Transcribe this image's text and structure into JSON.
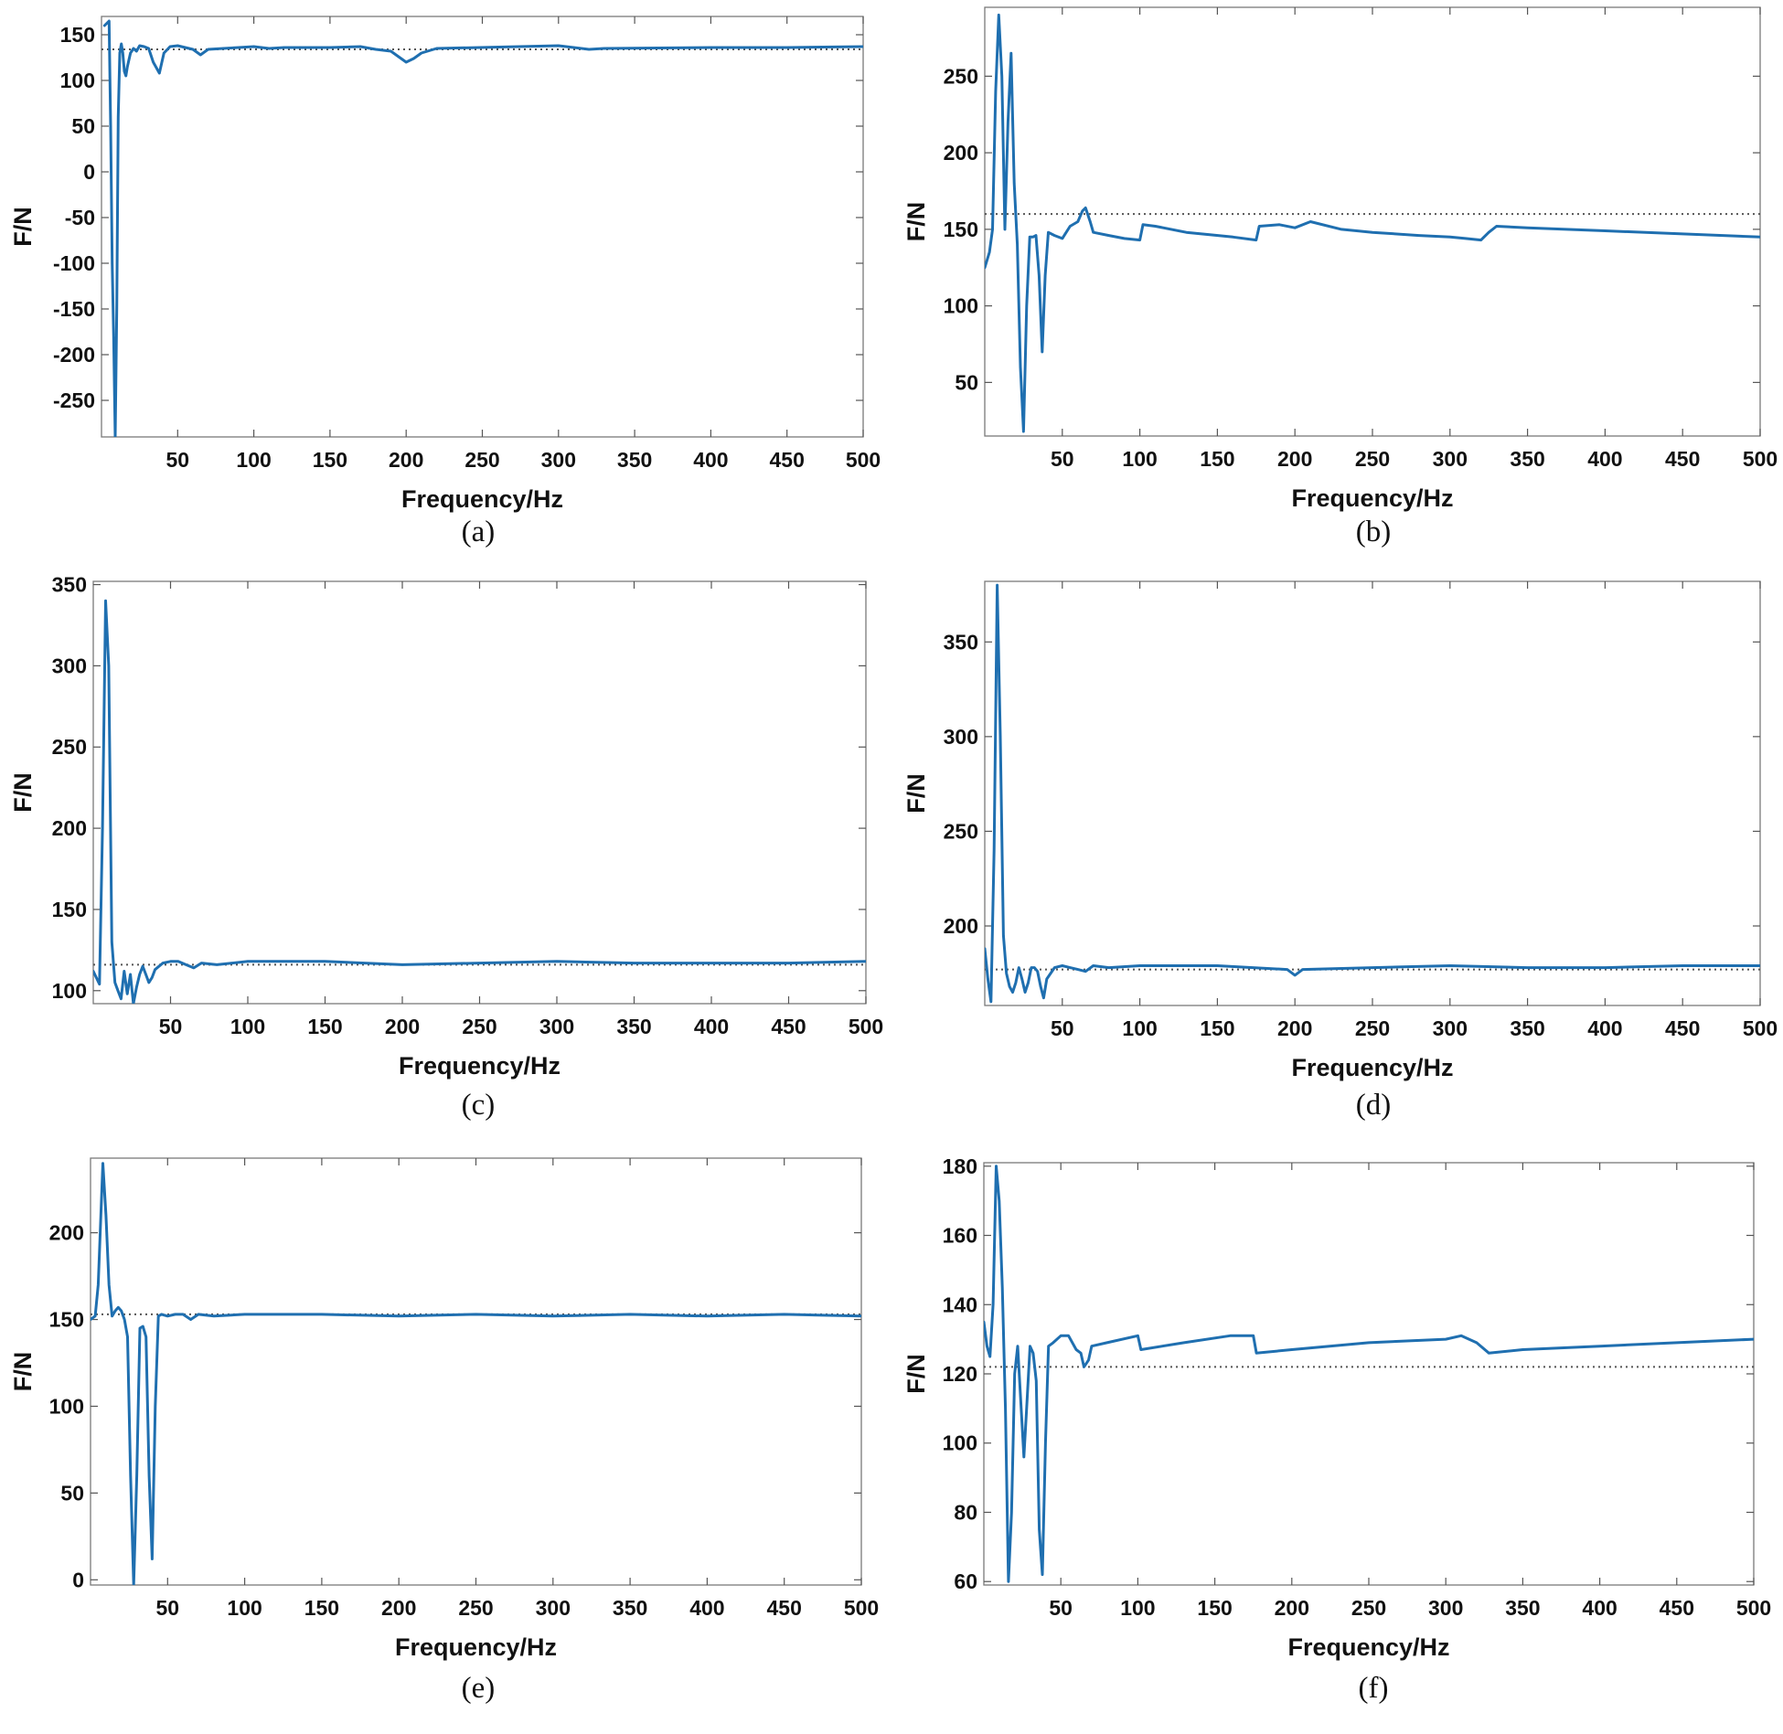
{
  "colors": {
    "series": "#1f6fb0",
    "reference": "#555555",
    "frame": "#7a7a7a",
    "text": "#111111"
  },
  "chart_data": [
    {
      "type": "line",
      "caption": "(a)",
      "xlabel": "Frequency/Hz",
      "ylabel": "F/N",
      "xlim": [
        0,
        500
      ],
      "ylim": [
        -290,
        170
      ],
      "xticks": [
        50,
        100,
        150,
        200,
        250,
        300,
        350,
        400,
        450,
        500
      ],
      "yticks": [
        150,
        100,
        50,
        0,
        -50,
        -100,
        -150,
        -200,
        -250
      ],
      "reference_line": 134,
      "series": [
        {
          "name": "F",
          "x": [
            2,
            5,
            6,
            7,
            8,
            9,
            10,
            11,
            12,
            13,
            14,
            15,
            16,
            17,
            19,
            21,
            23,
            25,
            28,
            31,
            34,
            38,
            41,
            45,
            50,
            55,
            60,
            65,
            70,
            80,
            90,
            100,
            110,
            120,
            150,
            170,
            180,
            190,
            200,
            205,
            210,
            220,
            300,
            320,
            330,
            400,
            450,
            500
          ],
          "y": [
            160,
            165,
            50,
            -100,
            -180,
            -290,
            -150,
            60,
            130,
            140,
            130,
            110,
            105,
            115,
            130,
            135,
            132,
            138,
            137,
            135,
            120,
            108,
            130,
            137,
            138,
            136,
            134,
            128,
            134,
            135,
            136,
            137,
            135,
            136,
            136,
            137,
            134,
            132,
            120,
            124,
            130,
            135,
            138,
            134,
            135,
            136,
            136,
            137
          ]
        }
      ]
    },
    {
      "type": "line",
      "caption": "(b)",
      "xlabel": "Frequency/Hz",
      "ylabel": "F/N",
      "xlim": [
        0,
        500
      ],
      "ylim": [
        15,
        295
      ],
      "xticks": [
        50,
        100,
        150,
        200,
        250,
        300,
        350,
        400,
        450,
        500
      ],
      "yticks": [
        250,
        200,
        150,
        100,
        50
      ],
      "reference_line": 160,
      "series": [
        {
          "name": "F",
          "x": [
            0,
            3,
            5,
            7,
            9,
            11,
            13,
            15,
            17,
            19,
            21,
            23,
            25,
            27,
            29,
            31,
            33,
            35,
            37,
            39,
            41,
            45,
            50,
            55,
            60,
            63,
            65,
            68,
            70,
            80,
            90,
            100,
            102,
            110,
            130,
            160,
            175,
            177,
            190,
            200,
            210,
            230,
            250,
            280,
            300,
            310,
            320,
            325,
            330,
            350,
            400,
            450,
            500
          ],
          "y": [
            125,
            135,
            150,
            240,
            290,
            250,
            150,
            220,
            265,
            180,
            140,
            60,
            18,
            100,
            145,
            145,
            146,
            120,
            70,
            120,
            148,
            146,
            144,
            152,
            155,
            162,
            164,
            155,
            148,
            146,
            144,
            143,
            153,
            152,
            148,
            145,
            143,
            152,
            153,
            151,
            155,
            150,
            148,
            146,
            145,
            144,
            143,
            148,
            152,
            151,
            149,
            147,
            145
          ]
        }
      ]
    },
    {
      "type": "line",
      "caption": "(c)",
      "xlabel": "Frequency/Hz",
      "ylabel": "F/N",
      "xlim": [
        0,
        500
      ],
      "ylim": [
        92,
        352
      ],
      "xticks": [
        50,
        100,
        150,
        200,
        250,
        300,
        350,
        400,
        450,
        500
      ],
      "yticks": [
        350,
        300,
        250,
        200,
        150,
        100
      ],
      "reference_line": 116,
      "series": [
        {
          "name": "F",
          "x": [
            0,
            2,
            4,
            6,
            8,
            10,
            12,
            14,
            16,
            18,
            20,
            22,
            24,
            26,
            28,
            30,
            32,
            34,
            36,
            38,
            40,
            45,
            50,
            55,
            60,
            65,
            70,
            80,
            100,
            150,
            200,
            250,
            300,
            350,
            400,
            450,
            500
          ],
          "y": [
            112,
            108,
            104,
            200,
            340,
            300,
            130,
            105,
            100,
            95,
            112,
            98,
            110,
            92,
            102,
            110,
            115,
            110,
            105,
            108,
            113,
            117,
            118,
            118,
            116,
            114,
            117,
            116,
            118,
            118,
            116,
            117,
            118,
            117,
            117,
            117,
            118
          ]
        }
      ]
    },
    {
      "type": "line",
      "caption": "(d)",
      "xlabel": "Frequency/Hz",
      "ylabel": "F/N",
      "xlim": [
        0,
        500
      ],
      "ylim": [
        158,
        382
      ],
      "xticks": [
        50,
        100,
        150,
        200,
        250,
        300,
        350,
        400,
        450,
        500
      ],
      "yticks": [
        350,
        300,
        250,
        200
      ],
      "reference_line": 177,
      "series": [
        {
          "name": "F",
          "x": [
            0,
            2,
            4,
            6,
            8,
            10,
            12,
            14,
            16,
            18,
            20,
            22,
            24,
            26,
            28,
            30,
            32,
            34,
            36,
            38,
            40,
            45,
            50,
            55,
            60,
            65,
            70,
            80,
            100,
            150,
            195,
            200,
            205,
            250,
            300,
            350,
            400,
            450,
            500
          ],
          "y": [
            188,
            172,
            160,
            240,
            380,
            300,
            195,
            175,
            168,
            165,
            170,
            178,
            172,
            165,
            170,
            178,
            178,
            176,
            168,
            162,
            172,
            178,
            179,
            178,
            177,
            176,
            179,
            178,
            179,
            179,
            177,
            174,
            177,
            178,
            179,
            178,
            178,
            179,
            179
          ]
        }
      ]
    },
    {
      "type": "line",
      "caption": "(e)",
      "xlabel": "Frequency/Hz",
      "ylabel": "F/N",
      "xlim": [
        0,
        500
      ],
      "ylim": [
        -3,
        243
      ],
      "xticks": [
        50,
        100,
        150,
        200,
        250,
        300,
        350,
        400,
        450,
        500
      ],
      "yticks": [
        200,
        150,
        100,
        50,
        0
      ],
      "reference_line": 153,
      "series": [
        {
          "name": "F",
          "x": [
            0,
            3,
            5,
            8,
            10,
            12,
            14,
            16,
            18,
            20,
            22,
            24,
            26,
            28,
            30,
            32,
            34,
            36,
            38,
            40,
            42,
            44,
            46,
            50,
            55,
            60,
            65,
            70,
            80,
            100,
            150,
            200,
            250,
            300,
            350,
            400,
            450,
            500
          ],
          "y": [
            150,
            152,
            170,
            240,
            210,
            170,
            152,
            155,
            157,
            155,
            150,
            140,
            60,
            -3,
            60,
            145,
            146,
            140,
            60,
            12,
            100,
            152,
            153,
            152,
            153,
            153,
            150,
            153,
            152,
            153,
            153,
            152,
            153,
            152,
            153,
            152,
            153,
            152
          ]
        }
      ]
    },
    {
      "type": "line",
      "caption": "(f)",
      "xlabel": "Frequency/Hz",
      "ylabel": "F/N",
      "xlim": [
        0,
        500
      ],
      "ylim": [
        59,
        181
      ],
      "xticks": [
        50,
        100,
        150,
        200,
        250,
        300,
        350,
        400,
        450,
        500
      ],
      "yticks": [
        180,
        160,
        140,
        120,
        100,
        80,
        60
      ],
      "reference_line": 122,
      "series": [
        {
          "name": "F",
          "x": [
            0,
            2,
            4,
            6,
            8,
            10,
            12,
            14,
            16,
            18,
            20,
            22,
            24,
            26,
            28,
            30,
            32,
            34,
            36,
            38,
            40,
            42,
            45,
            50,
            55,
            60,
            63,
            65,
            68,
            70,
            80,
            100,
            102,
            130,
            160,
            175,
            177,
            200,
            250,
            300,
            310,
            320,
            328,
            350,
            400,
            450,
            500
          ],
          "y": [
            135,
            128,
            125,
            140,
            180,
            170,
            145,
            110,
            60,
            80,
            120,
            128,
            112,
            96,
            112,
            128,
            126,
            118,
            75,
            62,
            100,
            128,
            129,
            131,
            131,
            127,
            126,
            122,
            124,
            128,
            129,
            131,
            127,
            129,
            131,
            131,
            126,
            127,
            129,
            130,
            131,
            129,
            126,
            127,
            128,
            129,
            130
          ]
        }
      ]
    }
  ]
}
